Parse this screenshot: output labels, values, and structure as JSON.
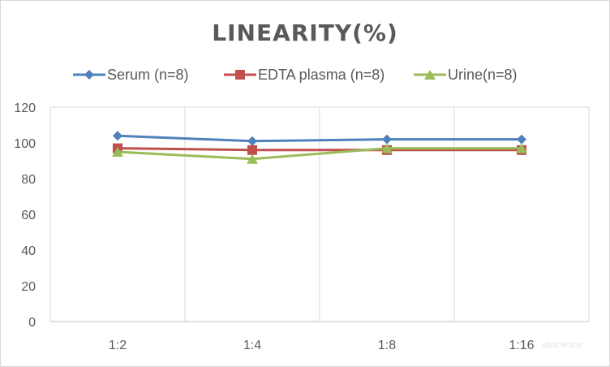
{
  "chart_data": {
    "type": "line",
    "title": "LINEARITY(%)",
    "categories": [
      "1:2",
      "1:4",
      "1:8",
      "1:16"
    ],
    "series": [
      {
        "name": "Serum (n=8)",
        "values": [
          104,
          101,
          102,
          102
        ],
        "color": "#4f81bd",
        "marker": "diamond"
      },
      {
        "name": "EDTA plasma (n=8)",
        "values": [
          97,
          96,
          96,
          96
        ],
        "color": "#c0504d",
        "marker": "square"
      },
      {
        "name": "Urine(n=8)",
        "values": [
          95,
          91,
          97,
          97
        ],
        "color": "#9bbb59",
        "marker": "triangle"
      }
    ],
    "ylim": [
      0,
      120
    ],
    "yticks": [
      0,
      20,
      40,
      60,
      80,
      100,
      120
    ],
    "grid": "vertical category separators",
    "legend": "top",
    "watermark": "abscience"
  }
}
